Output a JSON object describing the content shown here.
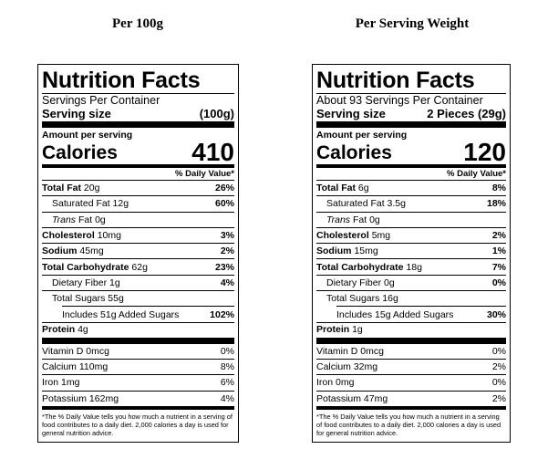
{
  "headings": {
    "left": "Per 100g",
    "right": "Per Serving Weight"
  },
  "labels": [
    {
      "title": "Nutrition Facts",
      "servings": "Servings Per Container",
      "serving_size_label": "Serving size",
      "serving_size_value": "(100g)",
      "amount_per_serving": "Amount per serving",
      "calories_label": "Calories",
      "calories_value": "410",
      "dv_header": "% Daily Value*",
      "total_fat": {
        "label": "Total Fat",
        "amount": "20g",
        "dv": "26%"
      },
      "sat_fat": {
        "label": "Saturated Fat",
        "amount": "12g",
        "dv": "60%"
      },
      "trans_fat": {
        "label": "Trans",
        "suffix": "Fat 0g"
      },
      "cholesterol": {
        "label": "Cholesterol",
        "amount": "10mg",
        "dv": "3%"
      },
      "sodium": {
        "label": "Sodium",
        "amount": "45mg",
        "dv": "2%"
      },
      "total_carb": {
        "label": "Total Carbohydrate",
        "amount": "62g",
        "dv": "23%"
      },
      "fiber": {
        "label": "Dietary Fiber",
        "amount": "1g",
        "dv": "4%"
      },
      "sugars": {
        "label": "Total Sugars",
        "amount": "55g"
      },
      "added_sugars": {
        "label": "Includes 51g Added Sugars",
        "dv": "102%"
      },
      "protein": {
        "label": "Protein",
        "amount": "4g"
      },
      "vitamin_d": {
        "label": "Vitamin D 0mcg",
        "dv": "0%"
      },
      "calcium": {
        "label": "Calcium 110mg",
        "dv": "8%"
      },
      "iron": {
        "label": "Iron 1mg",
        "dv": "6%"
      },
      "potassium": {
        "label": "Potassium 162mg",
        "dv": "4%"
      },
      "footnote": "*The % Daily Value tells you how much a nutrient in a serving of food contributes to a daily diet. 2,000 calories a day is used for general nutrition advice."
    },
    {
      "title": "Nutrition Facts",
      "servings": "About 93 Servings Per Container",
      "serving_size_label": "Serving size",
      "serving_size_value": "2 Pieces (29g)",
      "amount_per_serving": "Amount per serving",
      "calories_label": "Calories",
      "calories_value": "120",
      "dv_header": "% Daily Value*",
      "total_fat": {
        "label": "Total Fat",
        "amount": "6g",
        "dv": "8%"
      },
      "sat_fat": {
        "label": "Saturated Fat",
        "amount": "3.5g",
        "dv": "18%"
      },
      "trans_fat": {
        "label": "Trans",
        "suffix": "Fat 0g"
      },
      "cholesterol": {
        "label": "Cholesterol",
        "amount": "5mg",
        "dv": "2%"
      },
      "sodium": {
        "label": "Sodium",
        "amount": "15mg",
        "dv": "1%"
      },
      "total_carb": {
        "label": "Total Carbohydrate",
        "amount": "18g",
        "dv": "7%"
      },
      "fiber": {
        "label": "Dietary Fiber",
        "amount": "0g",
        "dv": "0%"
      },
      "sugars": {
        "label": "Total Sugars",
        "amount": "16g"
      },
      "added_sugars": {
        "label": "Includes 15g Added Sugars",
        "dv": "30%"
      },
      "protein": {
        "label": "Protein",
        "amount": "1g"
      },
      "vitamin_d": {
        "label": "Vitamin D 0mcg",
        "dv": "0%"
      },
      "calcium": {
        "label": "Calcium 32mg",
        "dv": "2%"
      },
      "iron": {
        "label": "Iron 0mg",
        "dv": "0%"
      },
      "potassium": {
        "label": "Potassium 47mg",
        "dv": "2%"
      },
      "footnote": "*The % Daily Value tells you how much a nutrient in a serving of food contributes to a daily diet. 2,000 calories a day is used for general nutrition advice."
    }
  ]
}
